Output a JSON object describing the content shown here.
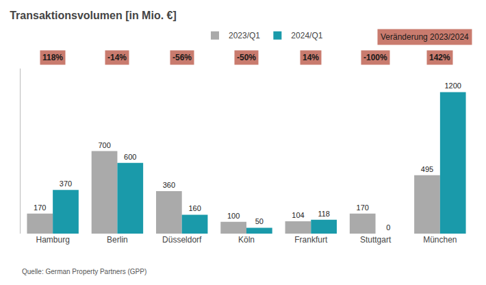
{
  "chart_data": {
    "type": "bar",
    "title": "Transaktionsvolumen [in Mio. €]",
    "categories": [
      "Hamburg",
      "Berlin",
      "Düsseldorf",
      "Köln",
      "Frankfurt",
      "Stuttgart",
      "München"
    ],
    "series": [
      {
        "name": "2023/Q1",
        "color": "#aaaaaa",
        "values": [
          170,
          700,
          360,
          100,
          104,
          170,
          495
        ]
      },
      {
        "name": "2024/Q1",
        "color": "#1a9aaa",
        "values": [
          370,
          600,
          160,
          50,
          118,
          0,
          1200
        ]
      }
    ],
    "ylim": [
      0,
      1400
    ],
    "grid": false,
    "legend": "top",
    "tick_labels": "x",
    "data_labels": true,
    "annotations": [
      {
        "text": "Veränderung 2023/2024",
        "color": "#c97b6e"
      },
      {
        "x": "Hamburg",
        "text": "118%",
        "color": "#c97b6e"
      },
      {
        "x": "Berlin",
        "text": "-14%",
        "color": "#c97b6e"
      },
      {
        "x": "Düsseldorf",
        "text": "-56%",
        "color": "#c97b6e"
      },
      {
        "x": "Köln",
        "text": "-50%",
        "color": "#c97b6e"
      },
      {
        "x": "Frankfurt",
        "text": "14%",
        "color": "#c97b6e"
      },
      {
        "x": "Stuttgart",
        "text": "-100%",
        "color": "#c97b6e"
      },
      {
        "x": "München",
        "text": "142%",
        "color": "#c97b6e"
      },
      {
        "text": "Quelle: German Property Partners (GPP)"
      }
    ]
  }
}
